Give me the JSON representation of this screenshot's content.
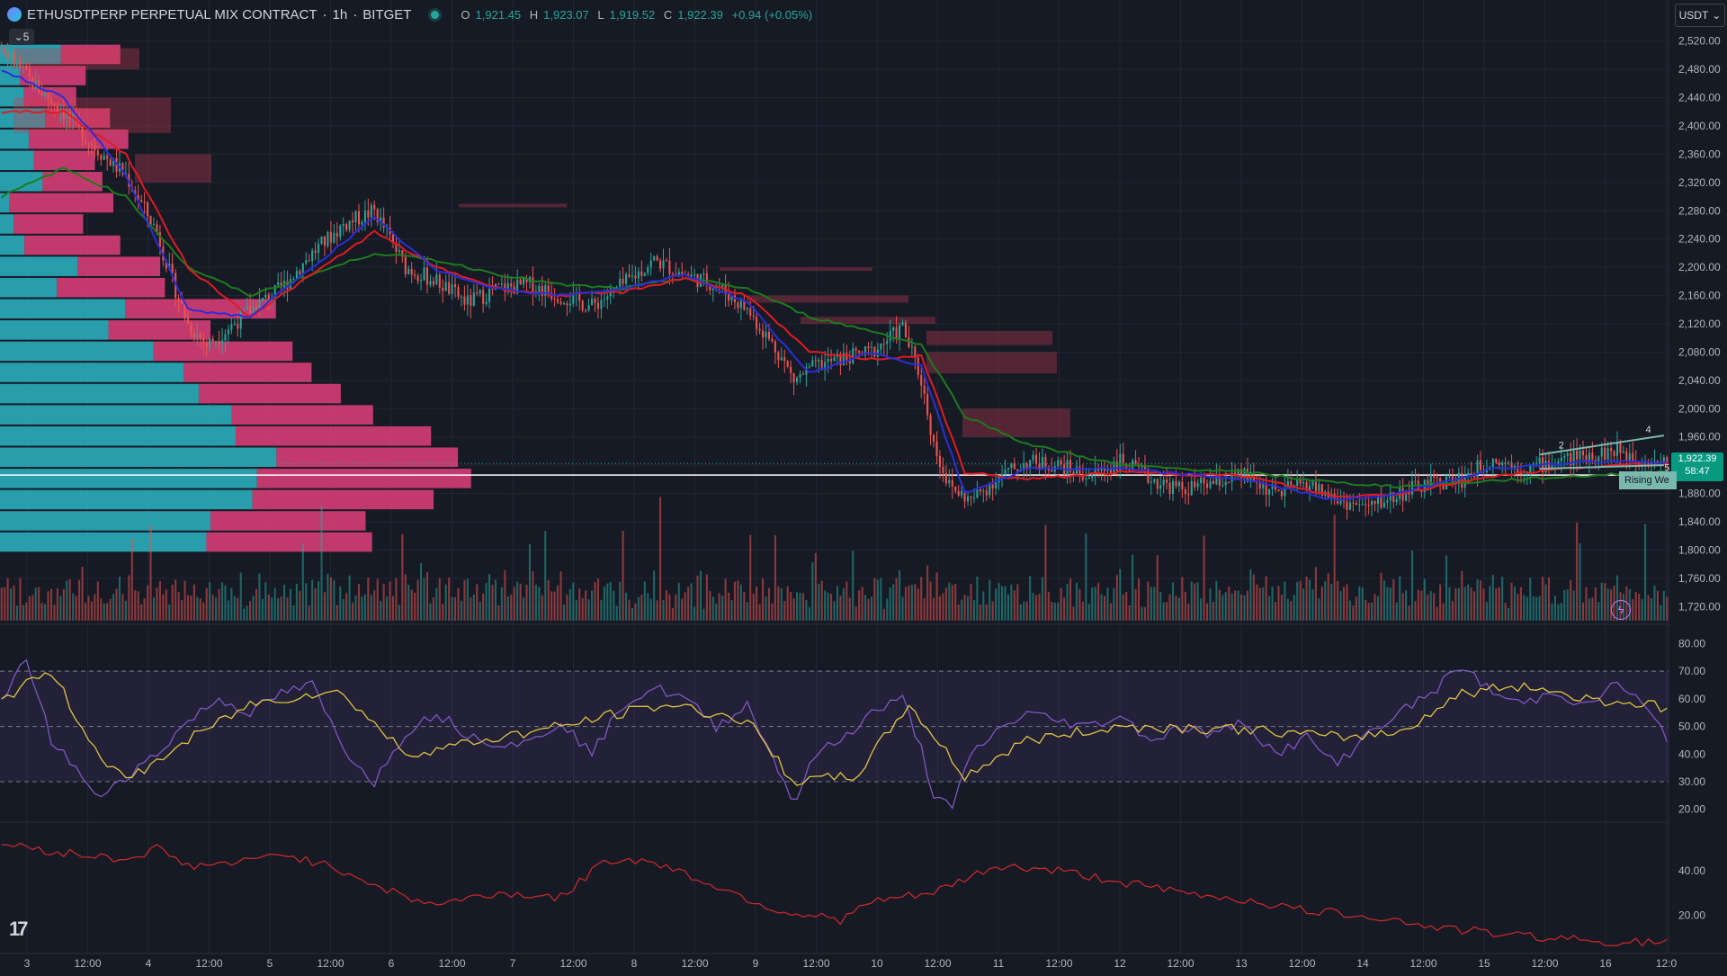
{
  "header": {
    "symbol": "ETHUSDTPERP PERPETUAL MIX CONTRACT",
    "interval": "1h",
    "exchange": "BITGET",
    "separator": "·",
    "o_label": "O",
    "o": "1,921.45",
    "h_label": "H",
    "h": "1,923.07",
    "l_label": "L",
    "l": "1,919.52",
    "c_label": "C",
    "c": "1,922.39",
    "change": "+0.94 (+0.05%)"
  },
  "currency_button": "USDT",
  "collapse_count": "5",
  "price_axis": {
    "ticks": [
      "2,520.00",
      "2,480.00",
      "2,440.00",
      "2,400.00",
      "2,360.00",
      "2,320.00",
      "2,280.00",
      "2,240.00",
      "2,200.00",
      "2,160.00",
      "2,120.00",
      "2,080.00",
      "2,040.00",
      "2,000.00",
      "1,960.00",
      "1,920.00",
      "1,880.00",
      "1,840.00",
      "1,800.00",
      "1,760.00",
      "1,720.00"
    ],
    "current_price": "1,922.39",
    "countdown": "58:47"
  },
  "rsi_axis": {
    "ticks": [
      "80.00",
      "70.00",
      "60.00",
      "50.00",
      "40.00",
      "30.00",
      "20.00"
    ]
  },
  "lower_axis": {
    "ticks": [
      "40.00",
      "20.00"
    ]
  },
  "time_axis": {
    "labels": [
      "3",
      "12:00",
      "4",
      "12:00",
      "5",
      "12:00",
      "6",
      "12:00",
      "7",
      "12:00",
      "8",
      "12:00",
      "9",
      "12:00",
      "10",
      "12:00",
      "11",
      "12:00",
      "12",
      "12:00",
      "13",
      "12:00",
      "14",
      "12:00",
      "15",
      "12:00",
      "16",
      "12:0"
    ]
  },
  "pattern_label": "Rising We",
  "wave_labels": [
    "2",
    "4",
    "5"
  ],
  "colors": {
    "background": "#161a25",
    "up": "#26a69a",
    "down": "#ef5350",
    "ema_fast": "#2a2ed8",
    "ema_mid": "#e01b24",
    "ema_slow": "#1e7b1e",
    "rsi_line": "#7e57c2",
    "rsi_ma": "#e0c341",
    "lower_line": "#c62828",
    "profile_buy": "#2bb5c3",
    "profile_sell": "#e0417a"
  },
  "chart_data": {
    "type": "candlestick",
    "x_start": "3",
    "x_end": "16",
    "ylim": [
      1700,
      2540
    ],
    "rsi_ylim": [
      16,
      86
    ],
    "rsi_levels": [
      70,
      50,
      30
    ],
    "lower_ylim": [
      5,
      60
    ],
    "close_path": [
      [
        0,
        2510
      ],
      [
        10,
        2460
      ],
      [
        20,
        2420
      ],
      [
        30,
        2370
      ],
      [
        40,
        2330
      ],
      [
        50,
        2250
      ],
      [
        55,
        2180
      ],
      [
        60,
        2120
      ],
      [
        66,
        2090
      ],
      [
        72,
        2110
      ],
      [
        80,
        2140
      ],
      [
        90,
        2170
      ],
      [
        100,
        2220
      ],
      [
        110,
        2260
      ],
      [
        120,
        2280
      ],
      [
        130,
        2200
      ],
      [
        140,
        2180
      ],
      [
        150,
        2150
      ],
      [
        160,
        2170
      ],
      [
        170,
        2175
      ],
      [
        180,
        2160
      ],
      [
        190,
        2145
      ],
      [
        200,
        2175
      ],
      [
        210,
        2210
      ],
      [
        220,
        2190
      ],
      [
        230,
        2175
      ],
      [
        240,
        2140
      ],
      [
        250,
        2080
      ],
      [
        255,
        2040
      ],
      [
        262,
        2060
      ],
      [
        270,
        2070
      ],
      [
        280,
        2080
      ],
      [
        290,
        2115
      ],
      [
        296,
        2040
      ],
      [
        300,
        1950
      ],
      [
        305,
        1890
      ],
      [
        312,
        1870
      ],
      [
        320,
        1900
      ],
      [
        330,
        1925
      ],
      [
        340,
        1920
      ],
      [
        350,
        1905
      ],
      [
        360,
        1925
      ],
      [
        370,
        1900
      ],
      [
        380,
        1885
      ],
      [
        390,
        1895
      ],
      [
        400,
        1905
      ],
      [
        410,
        1880
      ],
      [
        420,
        1895
      ],
      [
        430,
        1870
      ],
      [
        440,
        1860
      ],
      [
        450,
        1880
      ],
      [
        460,
        1895
      ],
      [
        470,
        1900
      ],
      [
        480,
        1930
      ],
      [
        490,
        1915
      ],
      [
        500,
        1925
      ],
      [
        510,
        1935
      ],
      [
        520,
        1940
      ],
      [
        530,
        1928
      ],
      [
        536,
        1922.39
      ]
    ],
    "ema_fast_path": [
      [
        0,
        2480
      ],
      [
        20,
        2440
      ],
      [
        40,
        2330
      ],
      [
        60,
        2140
      ],
      [
        80,
        2130
      ],
      [
        100,
        2200
      ],
      [
        120,
        2270
      ],
      [
        140,
        2195
      ],
      [
        160,
        2170
      ],
      [
        180,
        2160
      ],
      [
        200,
        2170
      ],
      [
        220,
        2190
      ],
      [
        240,
        2150
      ],
      [
        260,
        2050
      ],
      [
        280,
        2080
      ],
      [
        296,
        2060
      ],
      [
        310,
        1880
      ],
      [
        330,
        1915
      ],
      [
        360,
        1915
      ],
      [
        400,
        1900
      ],
      [
        430,
        1870
      ],
      [
        450,
        1880
      ],
      [
        480,
        1915
      ],
      [
        510,
        1925
      ],
      [
        536,
        1924
      ]
    ],
    "ema_mid_path": [
      [
        0,
        2420
      ],
      [
        20,
        2420
      ],
      [
        40,
        2360
      ],
      [
        60,
        2200
      ],
      [
        80,
        2130
      ],
      [
        100,
        2190
      ],
      [
        120,
        2250
      ],
      [
        140,
        2200
      ],
      [
        160,
        2170
      ],
      [
        180,
        2160
      ],
      [
        200,
        2165
      ],
      [
        220,
        2185
      ],
      [
        240,
        2160
      ],
      [
        260,
        2080
      ],
      [
        280,
        2070
      ],
      [
        296,
        2075
      ],
      [
        310,
        1910
      ],
      [
        330,
        1900
      ],
      [
        360,
        1910
      ],
      [
        400,
        1905
      ],
      [
        430,
        1875
      ],
      [
        450,
        1880
      ],
      [
        480,
        1905
      ],
      [
        510,
        1918
      ],
      [
        536,
        1922
      ]
    ],
    "ema_slow_path": [
      [
        0,
        2300
      ],
      [
        20,
        2340
      ],
      [
        40,
        2300
      ],
      [
        60,
        2200
      ],
      [
        80,
        2160
      ],
      [
        100,
        2190
      ],
      [
        120,
        2220
      ],
      [
        140,
        2210
      ],
      [
        160,
        2190
      ],
      [
        180,
        2175
      ],
      [
        200,
        2170
      ],
      [
        220,
        2185
      ],
      [
        240,
        2170
      ],
      [
        260,
        2130
      ],
      [
        280,
        2110
      ],
      [
        296,
        2090
      ],
      [
        310,
        1990
      ],
      [
        330,
        1950
      ],
      [
        360,
        1920
      ],
      [
        400,
        1910
      ],
      [
        430,
        1895
      ],
      [
        450,
        1890
      ],
      [
        480,
        1898
      ],
      [
        510,
        1905
      ],
      [
        536,
        1912
      ]
    ],
    "rsi_path": [
      [
        0,
        58
      ],
      [
        8,
        75
      ],
      [
        16,
        45
      ],
      [
        24,
        35
      ],
      [
        30,
        24
      ],
      [
        40,
        32
      ],
      [
        50,
        40
      ],
      [
        60,
        52
      ],
      [
        70,
        60
      ],
      [
        80,
        55
      ],
      [
        90,
        62
      ],
      [
        100,
        65
      ],
      [
        110,
        42
      ],
      [
        120,
        30
      ],
      [
        130,
        48
      ],
      [
        140,
        55
      ],
      [
        150,
        47
      ],
      [
        160,
        44
      ],
      [
        170,
        44
      ],
      [
        180,
        52
      ],
      [
        190,
        40
      ],
      [
        200,
        58
      ],
      [
        210,
        64
      ],
      [
        220,
        60
      ],
      [
        230,
        50
      ],
      [
        240,
        58
      ],
      [
        250,
        35
      ],
      [
        255,
        22
      ],
      [
        262,
        40
      ],
      [
        270,
        45
      ],
      [
        280,
        55
      ],
      [
        290,
        60
      ],
      [
        296,
        42
      ],
      [
        300,
        25
      ],
      [
        306,
        20
      ],
      [
        312,
        40
      ],
      [
        320,
        48
      ],
      [
        330,
        55
      ],
      [
        340,
        52
      ],
      [
        350,
        50
      ],
      [
        360,
        54
      ],
      [
        370,
        45
      ],
      [
        380,
        50
      ],
      [
        390,
        47
      ],
      [
        400,
        52
      ],
      [
        410,
        40
      ],
      [
        420,
        46
      ],
      [
        430,
        36
      ],
      [
        440,
        48
      ],
      [
        450,
        55
      ],
      [
        460,
        62
      ],
      [
        470,
        72
      ],
      [
        480,
        62
      ],
      [
        490,
        58
      ],
      [
        500,
        63
      ],
      [
        510,
        57
      ],
      [
        520,
        66
      ],
      [
        528,
        58
      ],
      [
        536,
        46
      ]
    ],
    "rsi_ma_path": [
      [
        0,
        60
      ],
      [
        16,
        70
      ],
      [
        30,
        42
      ],
      [
        40,
        30
      ],
      [
        60,
        45
      ],
      [
        80,
        58
      ],
      [
        100,
        62
      ],
      [
        110,
        62
      ],
      [
        130,
        40
      ],
      [
        150,
        44
      ],
      [
        180,
        50
      ],
      [
        200,
        55
      ],
      [
        215,
        58
      ],
      [
        240,
        52
      ],
      [
        255,
        30
      ],
      [
        275,
        32
      ],
      [
        292,
        58
      ],
      [
        310,
        32
      ],
      [
        330,
        45
      ],
      [
        360,
        50
      ],
      [
        400,
        49
      ],
      [
        430,
        46
      ],
      [
        450,
        48
      ],
      [
        470,
        62
      ],
      [
        490,
        65
      ],
      [
        510,
        60
      ],
      [
        530,
        58
      ],
      [
        536,
        56
      ]
    ],
    "lower_path": [
      [
        0,
        52
      ],
      [
        20,
        48
      ],
      [
        40,
        45
      ],
      [
        50,
        50
      ],
      [
        60,
        42
      ],
      [
        80,
        44
      ],
      [
        90,
        48
      ],
      [
        110,
        40
      ],
      [
        130,
        28
      ],
      [
        140,
        25
      ],
      [
        160,
        30
      ],
      [
        180,
        28
      ],
      [
        195,
        45
      ],
      [
        210,
        44
      ],
      [
        230,
        33
      ],
      [
        250,
        22
      ],
      [
        270,
        18
      ],
      [
        280,
        26
      ],
      [
        300,
        30
      ],
      [
        320,
        42
      ],
      [
        340,
        40
      ],
      [
        360,
        35
      ],
      [
        380,
        30
      ],
      [
        400,
        27
      ],
      [
        420,
        22
      ],
      [
        440,
        20
      ],
      [
        460,
        15
      ],
      [
        480,
        12
      ],
      [
        500,
        10
      ],
      [
        520,
        8
      ],
      [
        536,
        8
      ]
    ]
  }
}
